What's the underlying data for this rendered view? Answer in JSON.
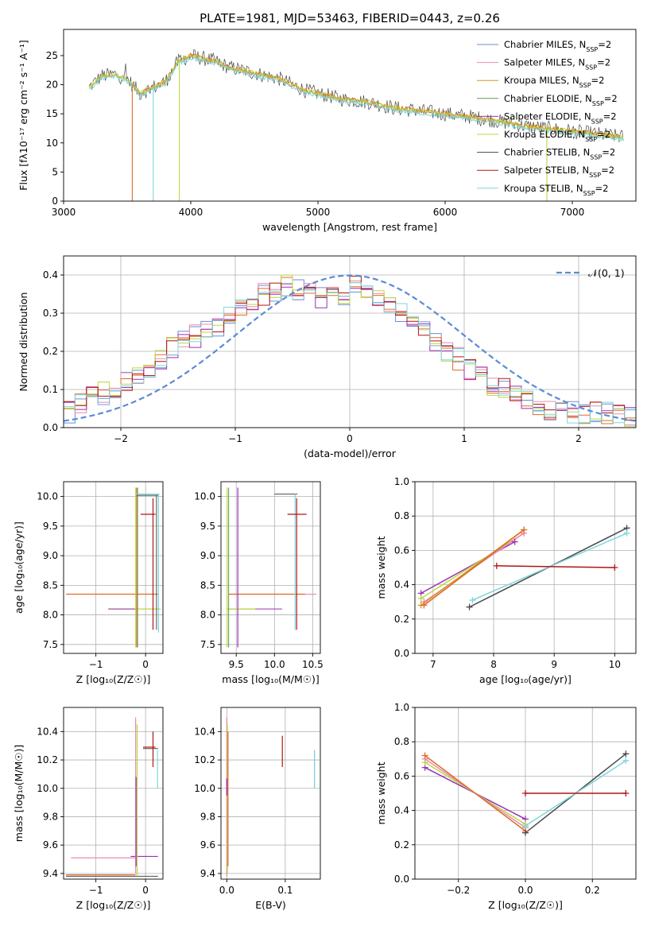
{
  "colors": {
    "chabrier_miles": "#6a8fd8",
    "salpeter_miles": "#e88cb0",
    "kroupa_miles": "#d6962a",
    "chabrier_elodie": "#5c9c4c",
    "salpeter_elodie": "#9b2fb8",
    "kroupa_elodie": "#b8d840",
    "chabrier_stelib": "#4a4a4a",
    "salpeter_stelib": "#b01515",
    "kroupa_stelib": "#7fd6dc",
    "orange": "#e06a28",
    "normal_curve": "#5b8bd6"
  },
  "chart_data": [
    {
      "id": "spectrum",
      "type": "line",
      "title": "PLATE=1981, MJD=53463, FIBERID=0443, z=0.26",
      "xlabel": "wavelength [Angstrom, rest frame]",
      "ylabel": "Flux [fλ10⁻¹⁷ erg cm⁻² s⁻¹ A⁻¹]",
      "xlim": [
        3000,
        7500
      ],
      "ylim": [
        0,
        29.5
      ],
      "xticks": [
        "3000",
        "4000",
        "5000",
        "6000",
        "7000"
      ],
      "yticks": [
        "0",
        "5",
        "10",
        "15",
        "20",
        "25"
      ],
      "legend": [
        {
          "label": "Chabrier MILES, N",
          "sub": "SSP",
          "tail": "=2",
          "color": "#6a8fd8"
        },
        {
          "label": "Salpeter MILES, N",
          "sub": "SSP",
          "tail": "=2",
          "color": "#e88cb0"
        },
        {
          "label": "Kroupa MILES, N",
          "sub": "SSP",
          "tail": "=2",
          "color": "#d6962a"
        },
        {
          "label": "Chabrier ELODIE, N",
          "sub": "SSP",
          "tail": "=2",
          "color": "#5c9c4c"
        },
        {
          "label": "Salpeter ELODIE, N",
          "sub": "SSP",
          "tail": "=2",
          "color": "#9b2fb8"
        },
        {
          "label": "Kroupa ELODIE, N",
          "sub": "SSP",
          "tail": "=2",
          "color": "#b8d840"
        },
        {
          "label": "Chabrier STELIB, N",
          "sub": "SSP",
          "tail": "=2",
          "color": "#4a4a4a"
        },
        {
          "label": "Salpeter STELIB, N",
          "sub": "SSP",
          "tail": "=2",
          "color": "#b01515"
        },
        {
          "label": "Kroupa STELIB, N",
          "sub": "SSP",
          "tail": "=2",
          "color": "#7fd6dc"
        }
      ],
      "legend_loc": "upper right",
      "model_envelope": {
        "x": [
          3200,
          3300,
          3400,
          3500,
          3600,
          3700,
          3800,
          3900,
          4000,
          4100,
          4200,
          4300,
          4400,
          4500,
          4600,
          4700,
          4800,
          4900,
          5000,
          5200,
          5400,
          5600,
          5800,
          6000,
          6200,
          6400,
          6600,
          6800,
          7000,
          7200,
          7400
        ],
        "y": [
          19.5,
          21.5,
          21.8,
          21.0,
          18.5,
          19.5,
          20.5,
          24.0,
          25.0,
          24.5,
          24.0,
          23.0,
          22.5,
          22.0,
          21.5,
          21.0,
          20.0,
          19.0,
          18.5,
          17.5,
          17.0,
          16.0,
          15.5,
          15.0,
          14.5,
          13.8,
          13.0,
          12.5,
          12.0,
          11.5,
          11.0
        ]
      },
      "grid": false
    },
    {
      "id": "residuals",
      "type": "histogram",
      "xlabel": "(data-model)/error",
      "ylabel": "Normed distribution",
      "xlim": [
        -2.5,
        2.5
      ],
      "ylim": [
        0,
        0.45
      ],
      "xticks": [
        "−2",
        "−1",
        "0",
        "1",
        "2"
      ],
      "yticks": [
        "0.0",
        "0.1",
        "0.2",
        "0.3",
        "0.4"
      ],
      "legend": [
        {
          "label": "𝒩(0, 1)",
          "style": "dashed",
          "color": "#5b8bd6"
        }
      ],
      "normal": {
        "mu": 0,
        "sigma": 1
      },
      "bin_width": 0.1,
      "envelope": [
        0.04,
        0.06,
        0.08,
        0.09,
        0.1,
        0.12,
        0.13,
        0.15,
        0.18,
        0.21,
        0.23,
        0.24,
        0.25,
        0.27,
        0.29,
        0.31,
        0.33,
        0.35,
        0.36,
        0.37,
        0.36,
        0.35,
        0.34,
        0.34,
        0.35,
        0.37,
        0.36,
        0.35,
        0.33,
        0.3,
        0.27,
        0.25,
        0.23,
        0.2,
        0.18,
        0.15,
        0.13,
        0.11,
        0.1,
        0.08,
        0.07,
        0.06,
        0.05,
        0.05,
        0.04,
        0.04,
        0.04,
        0.04,
        0.04,
        0.03
      ],
      "grid": true
    },
    {
      "id": "age-vs-z",
      "type": "scatter",
      "xlabel": "Z [log₁₀(Z/Z☉)]",
      "ylabel": "age  [log₁₀(age/yr)]",
      "xlim": [
        -1.65,
        0.35
      ],
      "ylim": [
        7.35,
        10.25
      ],
      "xticks": [
        "−1",
        "0"
      ],
      "yticks": [
        "7.5",
        "8.0",
        "8.5",
        "9.0",
        "9.5",
        "10.0"
      ],
      "grid": true
    },
    {
      "id": "age-vs-mass",
      "type": "scatter",
      "xlabel": "mass [log₁₀(M/M☉)]",
      "ylabel": "",
      "xlim": [
        9.3,
        10.6
      ],
      "ylim": [
        7.35,
        10.25
      ],
      "xticks": [
        "9.5",
        "10.0",
        "10.5"
      ],
      "yticks": [
        "7.5",
        "8.0",
        "8.5",
        "9.0",
        "9.5",
        "10.0"
      ],
      "grid": true
    },
    {
      "id": "weight-vs-age",
      "type": "line",
      "xlabel": "age  [log₁₀(age/yr)]",
      "ylabel": "mass weight",
      "xlim": [
        6.7,
        10.35
      ],
      "ylim": [
        0,
        1
      ],
      "xticks": [
        "7",
        "8",
        "9",
        "10"
      ],
      "yticks": [
        "0.0",
        "0.2",
        "0.4",
        "0.6",
        "0.8",
        "1.0"
      ],
      "series": [
        {
          "color": "#9b2fb8",
          "x": [
            6.8,
            8.35
          ],
          "y": [
            0.35,
            0.65
          ]
        },
        {
          "color": "#b8d840",
          "x": [
            6.8,
            8.5
          ],
          "y": [
            0.32,
            0.7
          ]
        },
        {
          "color": "#e88cb0",
          "x": [
            6.85,
            8.5
          ],
          "y": [
            0.3,
            0.7
          ]
        },
        {
          "color": "#d6962a",
          "x": [
            6.8,
            8.5
          ],
          "y": [
            0.28,
            0.72
          ]
        },
        {
          "color": "#e06a28",
          "x": [
            6.85,
            8.5
          ],
          "y": [
            0.28,
            0.72
          ]
        },
        {
          "color": "#4a4a4a",
          "x": [
            7.6,
            10.2
          ],
          "y": [
            0.27,
            0.73
          ]
        },
        {
          "color": "#7fd6dc",
          "x": [
            7.65,
            10.2
          ],
          "y": [
            0.31,
            0.7
          ]
        },
        {
          "color": "#b01515",
          "x": [
            8.05,
            10.0
          ],
          "y": [
            0.51,
            0.5
          ]
        }
      ],
      "grid": true
    },
    {
      "id": "mass-vs-z",
      "type": "scatter",
      "xlabel": "Z [log₁₀(Z/Z☉)]",
      "ylabel": "mass [log₁₀(M/M☉)]",
      "xlim": [
        -1.65,
        0.35
      ],
      "ylim": [
        9.36,
        10.57
      ],
      "xticks": [
        "−1",
        "0"
      ],
      "yticks": [
        "9.4",
        "9.6",
        "9.8",
        "10.0",
        "10.2",
        "10.4"
      ],
      "grid": true
    },
    {
      "id": "mass-vs-ebv",
      "type": "scatter",
      "xlabel": "E(B-V)",
      "ylabel": "",
      "xlim": [
        -0.01,
        0.16
      ],
      "ylim": [
        9.36,
        10.57
      ],
      "xticks": [
        "0.0",
        "0.1"
      ],
      "yticks": [
        "9.4",
        "9.6",
        "9.8",
        "10.0",
        "10.2",
        "10.4"
      ],
      "grid": true
    },
    {
      "id": "weight-vs-z",
      "type": "line",
      "xlabel": "Z [log₁₀(Z/Z☉)]",
      "ylabel": "mass weight",
      "xlim": [
        -0.33,
        0.33
      ],
      "ylim": [
        0,
        1
      ],
      "xticks": [
        "−0.2",
        "0.0",
        "0.2"
      ],
      "yticks": [
        "0.0",
        "0.2",
        "0.4",
        "0.6",
        "0.8",
        "1.0"
      ],
      "series": [
        {
          "color": "#9b2fb8",
          "x": [
            -0.3,
            0.0
          ],
          "y": [
            0.65,
            0.35
          ]
        },
        {
          "color": "#b8d840",
          "x": [
            -0.3,
            0.0
          ],
          "y": [
            0.68,
            0.32
          ]
        },
        {
          "color": "#e88cb0",
          "x": [
            -0.3,
            0.0
          ],
          "y": [
            0.7,
            0.3
          ]
        },
        {
          "color": "#e06a28",
          "x": [
            -0.3,
            0.0
          ],
          "y": [
            0.72,
            0.28
          ]
        },
        {
          "color": "#4a4a4a",
          "x": [
            0.0,
            0.3
          ],
          "y": [
            0.27,
            0.73
          ]
        },
        {
          "color": "#7fd6dc",
          "x": [
            0.0,
            0.3
          ],
          "y": [
            0.31,
            0.69
          ]
        },
        {
          "color": "#b01515",
          "x": [
            0.0,
            0.3
          ],
          "y": [
            0.5,
            0.5
          ]
        }
      ],
      "grid": true
    }
  ]
}
